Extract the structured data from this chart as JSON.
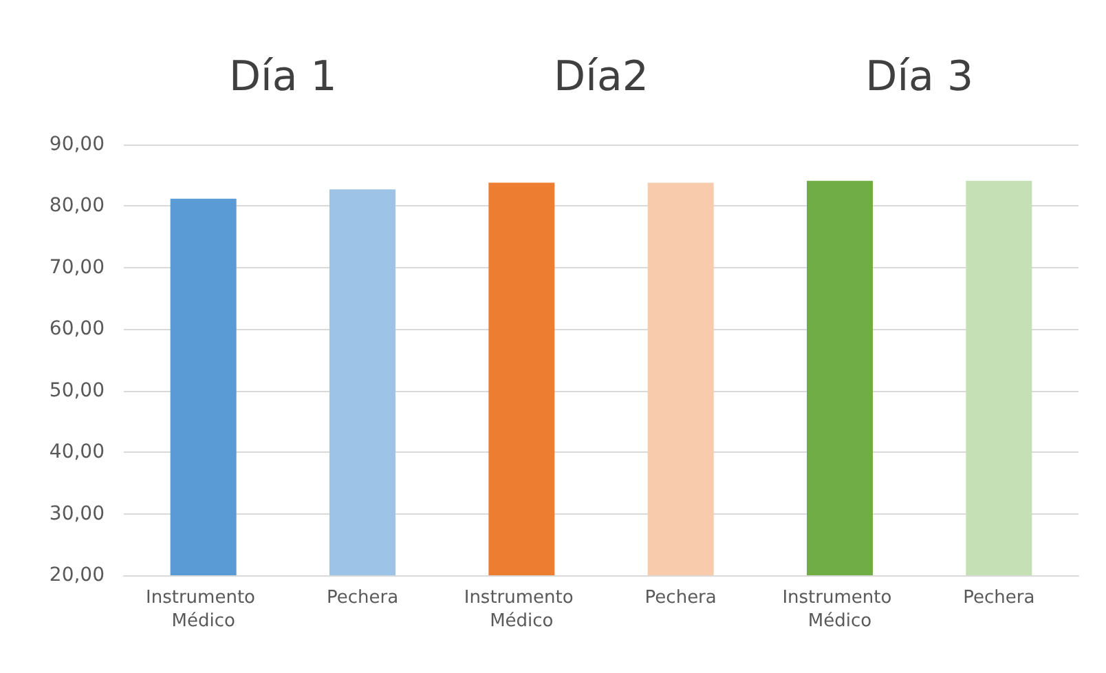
{
  "chart_data": {
    "type": "bar",
    "categories": [
      "Instrumento Médico",
      "Pechera",
      "Instrumento Médico",
      "Pechera",
      "Instrumento Médico",
      "Pechera"
    ],
    "values": [
      81.2,
      82.7,
      83.8,
      83.8,
      84.1,
      84.1
    ],
    "colors": [
      "#5b9bd5",
      "#9dc3e6",
      "#ed7d31",
      "#f8cbad",
      "#70ad47",
      "#c5e0b4"
    ],
    "ylim": [
      20,
      90
    ],
    "yticks": [
      {
        "value": 20,
        "label": "20,00"
      },
      {
        "value": 30,
        "label": "30,00"
      },
      {
        "value": 40,
        "label": "40,00"
      },
      {
        "value": 50,
        "label": "50,00"
      },
      {
        "value": 60,
        "label": "60,00"
      },
      {
        "value": 70,
        "label": "70,00"
      },
      {
        "value": 80,
        "label": "80,00"
      },
      {
        "value": 90,
        "label": "90,00"
      }
    ],
    "grid": "y",
    "annotations": [
      "Día 1",
      "Día2",
      "Día 3"
    ]
  }
}
